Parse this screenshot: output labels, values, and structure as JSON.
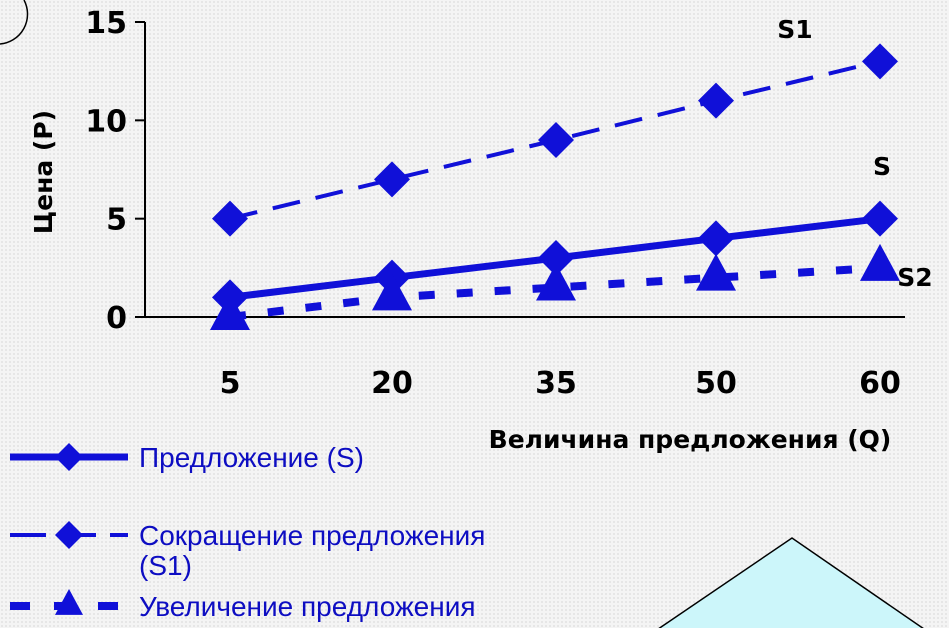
{
  "chart_data": {
    "type": "line",
    "categories": [
      "5",
      "20",
      "35",
      "50",
      "60"
    ],
    "xlabel": "Величина предложения (Q)",
    "ylabel": "Цена (P)",
    "ylim": [
      0,
      15
    ],
    "yticks": [
      "0",
      "5",
      "10",
      "15"
    ],
    "grid": false,
    "legend_position": "bottom-left",
    "series": [
      {
        "name": "Предложение (S)",
        "label": "S",
        "values": [
          1,
          2,
          3,
          4,
          5
        ],
        "style": "solid",
        "marker": "diamond"
      },
      {
        "name": "Сокращение предложения (S1)",
        "label": "S1",
        "values": [
          5,
          7,
          9,
          11,
          13
        ],
        "style": "dashed",
        "marker": "diamond"
      },
      {
        "name": "Увеличение предложения",
        "label": "S2",
        "values": [
          0,
          1,
          1.5,
          2,
          2.5
        ],
        "style": "dotted",
        "marker": "triangle"
      }
    ],
    "colors": {
      "series": "#1010d8",
      "axis": "#000000",
      "legend_text": "#0d0dc2",
      "shape_fill": "#ccf6fa"
    }
  }
}
